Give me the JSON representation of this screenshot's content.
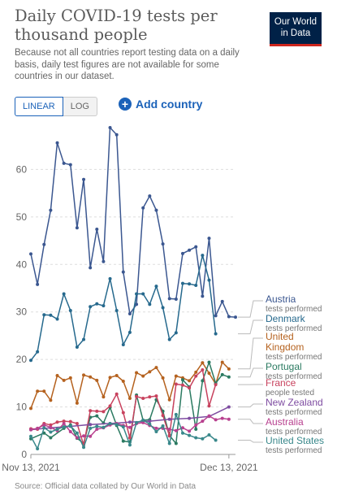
{
  "header": {
    "title": "Daily COVID-19 tests per thousand people",
    "subtitle": "Because not all countries report testing data on a daily basis, daily test figures are not available for some countries in our dataset.",
    "logo_line1": "Our World",
    "logo_line2": "in Data"
  },
  "controls": {
    "linear_label": "LINEAR",
    "log_label": "LOG",
    "add_country_label": "Add country"
  },
  "source_text": "Source: Official data collated by Our World in Data",
  "chart_data": {
    "type": "line",
    "y_ticks": [
      0,
      10,
      20,
      30,
      40,
      50,
      60
    ],
    "ylim": [
      0,
      70
    ],
    "x_tick_labels": [
      "Nov 13, 2021",
      "Dec 13, 2021"
    ],
    "x_range": [
      "Nov 13, 2021",
      "Dec 14, 2021"
    ],
    "grid": true,
    "legend_placement": "right",
    "series": [
      {
        "name": "Austria",
        "sub": "tests performed",
        "color": "#3b5790",
        "x": [
          0,
          1,
          2,
          3,
          4,
          5,
          6,
          7,
          8,
          9,
          10,
          11,
          12,
          13,
          14,
          15,
          16,
          17,
          18,
          19,
          20,
          21,
          22,
          23,
          24,
          25,
          26,
          27,
          28,
          29,
          30,
          31
        ],
        "values": [
          42.2,
          35.8,
          44.2,
          51.4,
          65.6,
          61.3,
          61.0,
          47.7,
          57.9,
          39.3,
          47.4,
          40.6,
          68.8,
          67.3,
          38.4,
          29.6,
          31.6,
          51.9,
          54.4,
          51.4,
          44.3,
          32.8,
          32.7,
          42.3,
          43.0,
          43.7,
          33.3,
          45.5,
          29.2,
          32.2,
          29.0,
          28.9
        ]
      },
      {
        "name": "Denmark",
        "sub": "tests performed",
        "color": "#26698d",
        "x": [
          0,
          1,
          2,
          3,
          4,
          5,
          6,
          7,
          8,
          9,
          10,
          11,
          12,
          13,
          14,
          15,
          16,
          17,
          18,
          19,
          20,
          21,
          22,
          23,
          24,
          25,
          26,
          27,
          28
        ],
        "values": [
          19.8,
          21.6,
          29.4,
          29.3,
          28.5,
          33.8,
          30.3,
          22.6,
          24.2,
          31.1,
          31.7,
          31.3,
          37.0,
          30.3,
          23.1,
          25.7,
          33.8,
          33.8,
          31.6,
          35.4,
          30.9,
          24.2,
          25.6,
          36.0,
          35.9,
          35.6,
          41.9,
          36.7,
          25.4
        ]
      },
      {
        "name": "United Kingdom",
        "sub": "tests performed",
        "color": "#b5621f",
        "x": [
          0,
          1,
          2,
          3,
          4,
          5,
          6,
          7,
          8,
          9,
          10,
          11,
          12,
          13,
          14,
          15,
          16,
          17,
          18,
          19,
          20,
          21,
          22,
          23,
          24,
          25,
          26,
          27,
          28,
          29,
          30
        ],
        "values": [
          9.7,
          13.3,
          13.3,
          11.4,
          16.6,
          15.6,
          16.1,
          10.8,
          16.7,
          16.3,
          15.6,
          12.1,
          16.2,
          16.6,
          15.4,
          11.8,
          17.2,
          16.5,
          17.4,
          18.3,
          16.1,
          11.5,
          16.5,
          16.1,
          15.5,
          17.3,
          19.3,
          17.1,
          14.8,
          19.4,
          18.0
        ]
      },
      {
        "name": "Portugal",
        "sub": "tests performed",
        "color": "#2b7a61",
        "x": [
          0,
          2,
          3,
          5,
          6,
          7,
          8,
          9,
          10,
          11,
          12,
          13,
          14,
          15,
          16,
          17,
          18,
          19,
          20,
          21,
          22,
          23,
          24,
          25,
          26,
          27,
          28,
          29,
          30
        ],
        "values": [
          3.3,
          4.5,
          3.5,
          5.5,
          6.2,
          3.4,
          2.3,
          7.8,
          8.1,
          6.6,
          9.9,
          6.1,
          2.8,
          2.6,
          12.5,
          7.2,
          7.3,
          11.5,
          9.1,
          4.0,
          2.3,
          15.7,
          14.2,
          5.3,
          15.5,
          19.4,
          15.0,
          16.8,
          16.3
        ]
      },
      {
        "name": "France",
        "sub": "people tested",
        "color": "#c8425e",
        "x": [
          0,
          1,
          2,
          3,
          4,
          5,
          6,
          7,
          8,
          9,
          10,
          11,
          12,
          13,
          14,
          15,
          16,
          17,
          18,
          19,
          20,
          21,
          22,
          23,
          24,
          25,
          26,
          27,
          28
        ],
        "values": [
          5.4,
          5.3,
          6.5,
          6.2,
          6.8,
          7.0,
          6.9,
          6.5,
          2.0,
          9.2,
          9.1,
          9.0,
          10.2,
          12.7,
          8.8,
          3.5,
          12.2,
          11.8,
          12.1,
          12.3,
          8.2,
          3.9,
          14.8,
          14.6,
          14.0,
          16.5,
          17.8,
          10.2,
          14.7
        ]
      },
      {
        "name": "New Zealand",
        "sub": "tests performed",
        "color": "#7e4ca1",
        "x": [
          0,
          3,
          6,
          9,
          12,
          15,
          18,
          21,
          24,
          27,
          30
        ],
        "values": [
          5.2,
          5.6,
          5.9,
          6.3,
          6.5,
          6.8,
          7.0,
          7.4,
          7.6,
          8.0,
          10.0
        ]
      },
      {
        "name": "Australia",
        "sub": "tests performed",
        "color": "#b8418f",
        "x": [
          0,
          1,
          2,
          3,
          4,
          5,
          6,
          7,
          8,
          9,
          10,
          11,
          12,
          13,
          14,
          15,
          16,
          17,
          18,
          19,
          20,
          21,
          22,
          23,
          24,
          25,
          26,
          27,
          28,
          29,
          30
        ],
        "values": [
          5.2,
          5.5,
          6.2,
          5.7,
          5.0,
          6.5,
          4.8,
          3.5,
          3.9,
          3.8,
          5.3,
          5.6,
          6.2,
          6.5,
          6.1,
          5.7,
          6.5,
          6.7,
          6.1,
          5.5,
          5.5,
          5.3,
          5.0,
          5.6,
          4.9,
          6.2,
          7.0,
          8.1,
          7.3,
          7.6,
          7.4
        ]
      },
      {
        "name": "United States",
        "sub": "tests performed",
        "color": "#39888b",
        "x": [
          0,
          1,
          2,
          3,
          4,
          5,
          6,
          7,
          8,
          9,
          10,
          11,
          12,
          13,
          14,
          15,
          16,
          17,
          18,
          19,
          20,
          21,
          22,
          23,
          24,
          25,
          26,
          27,
          28
        ],
        "values": [
          3.8,
          1.2,
          5.6,
          4.7,
          5.3,
          5.8,
          6.0,
          4.5,
          1.5,
          5.5,
          5.9,
          5.7,
          6.5,
          6.3,
          5.8,
          2.0,
          6.7,
          7.2,
          6.4,
          4.8,
          6.0,
          2.3,
          8.4,
          4.5,
          4.0,
          3.5,
          3.3,
          4.1,
          3.0
        ]
      }
    ]
  }
}
